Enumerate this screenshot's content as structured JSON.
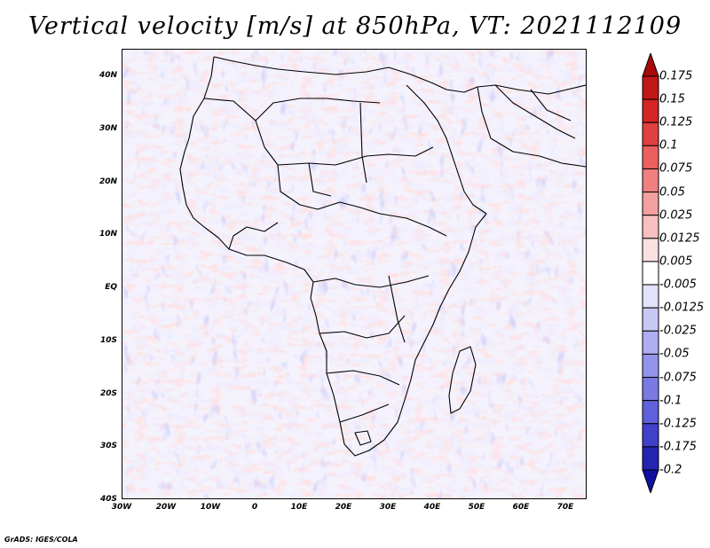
{
  "title": "Vertical velocity [m/s] at 850hPa, VT: 2021112109",
  "credit": "GrADS: IGES/COLA",
  "chart_data": {
    "type": "heatmap",
    "variable": "Vertical velocity",
    "units": "m/s",
    "level": "850hPa",
    "valid_time": "2021112109",
    "lon_range": [
      -30,
      75
    ],
    "lat_range": [
      -40,
      45
    ],
    "lat_ticks": [
      "40N",
      "30N",
      "20N",
      "10N",
      "EQ",
      "10S",
      "20S",
      "30S",
      "40S"
    ],
    "lon_ticks": [
      "30W",
      "20W",
      "10W",
      "0",
      "10E",
      "20E",
      "30E",
      "40E",
      "50E",
      "60E",
      "70E"
    ],
    "colorbar": {
      "labels": [
        "0.175",
        "0.15",
        "0.125",
        "0.1",
        "0.075",
        "0.05",
        "0.025",
        "0.0125",
        "0.005",
        "-0.005",
        "-0.0125",
        "-0.025",
        "-0.05",
        "-0.075",
        "-0.1",
        "-0.125",
        "-0.175",
        "-0.2"
      ],
      "colors": [
        "#a80a0a",
        "#c01616",
        "#d42424",
        "#e04040",
        "#ea6060",
        "#f08080",
        "#f5a0a0",
        "#f8c0c0",
        "#fbe0e0",
        "#ffffff",
        "#e2e2fa",
        "#c8c8f5",
        "#aeaef0",
        "#9494ea",
        "#7a7ae2",
        "#6060da",
        "#4040c8",
        "#2424b0",
        "#1010a0"
      ]
    }
  }
}
